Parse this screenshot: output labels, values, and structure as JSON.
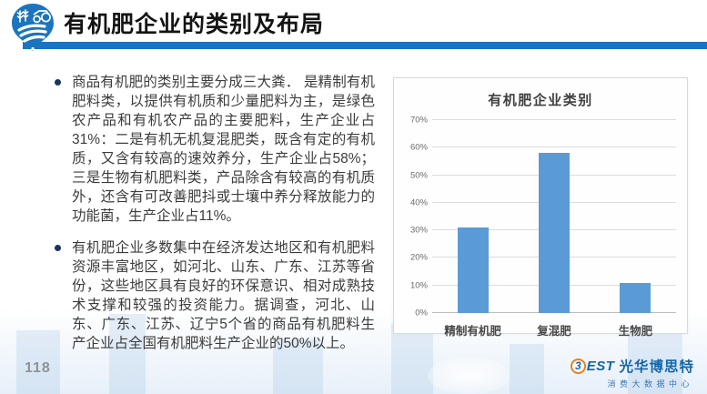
{
  "header": {
    "title": "有机肥企业的类别及布局",
    "accent_color": "#1a74c2",
    "logo": "farm-pin-logo"
  },
  "content": {
    "bullets": [
      {
        "text": "商品有机肥的类别主要分成三大粪． 是精制有机肥料类，以提供有机质和少量肥料为主，是绿色农产品和有机农产品的主要肥料，生产企业占31%：二是有机无机复混肥类，既含有定的有机质，又含有较高的速效养分，生产企业占58%；三是生物有机肥料类，产品除含有较高的有机质外，还含有可改善肥抖或士壤中养分释放能力的功能菌，生产企业占11%。"
      },
      {
        "text": "有机肥企业多数集中在经济发达地区和有机肥料资源丰富地区，如河北、山东、广东、江苏等省份，这些地区具有良好的环保意识、相对成熟技术支撑和较强的投资能力。据调查，河北、山东、广东、江苏、辽宁5个省的商品有机肥料生产企业占全国有机肥料生产企业的50%以上。"
      }
    ]
  },
  "chart_data": {
    "type": "bar",
    "title": "有机肥企业类别",
    "categories": [
      "精制有机肥",
      "复混肥",
      "生物肥"
    ],
    "values": [
      31,
      58,
      11
    ],
    "unit": "%",
    "ylim": [
      0,
      70
    ],
    "ytick_step": 10,
    "ytick_labels": [
      "0%",
      "10%",
      "20%",
      "30%",
      "40%",
      "50%",
      "60%",
      "70%"
    ],
    "bar_color": "#5b9bd5",
    "grid": true,
    "legend": false,
    "xlabel": "",
    "ylabel": ""
  },
  "footer": {
    "page_number": "118",
    "logo_icon_char": "3",
    "logo_text_en": "EST",
    "logo_text_cn": "光华博思特",
    "logo_subtitle": "消费大数据中心"
  }
}
